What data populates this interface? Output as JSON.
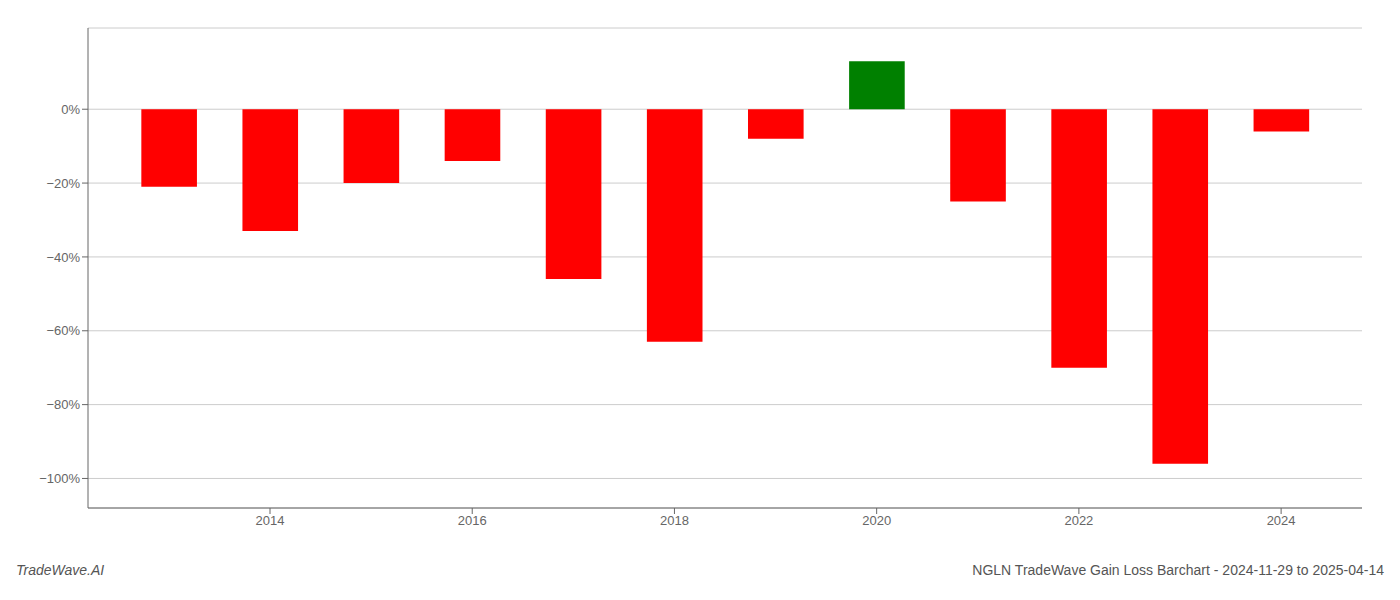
{
  "chart_data": {
    "type": "bar",
    "x": [
      2013,
      2014,
      2015,
      2016,
      2017,
      2018,
      2019,
      2020,
      2021,
      2022,
      2023,
      2024
    ],
    "values": [
      -0.21,
      -0.33,
      -0.2,
      -0.14,
      -0.46,
      -0.63,
      -0.08,
      0.13,
      -0.25,
      -0.7,
      -0.96,
      -0.06
    ],
    "colors": [
      "#ff0000",
      "#ff0000",
      "#ff0000",
      "#ff0000",
      "#ff0000",
      "#ff0000",
      "#ff0000",
      "#008000",
      "#ff0000",
      "#ff0000",
      "#ff0000",
      "#ff0000"
    ],
    "xlim": [
      2012.2,
      2024.8
    ],
    "xticks": [
      2014,
      2016,
      2018,
      2020,
      2022,
      2024
    ],
    "ylim": [
      -1.08,
      0.22
    ],
    "yticks": [
      {
        "value": 0.0,
        "label": "0%"
      },
      {
        "value": -0.2,
        "label": "−20%"
      },
      {
        "value": -0.4,
        "label": "−40%"
      },
      {
        "value": -0.6,
        "label": "−60%"
      },
      {
        "value": -0.8,
        "label": "−80%"
      },
      {
        "value": -1.0,
        "label": "−100%"
      }
    ],
    "grid": true,
    "annotations": [
      "TradeWave.AI",
      "NGLN TradeWave Gain Loss Barchart - 2024-11-29 to 2025-04-14"
    ]
  }
}
